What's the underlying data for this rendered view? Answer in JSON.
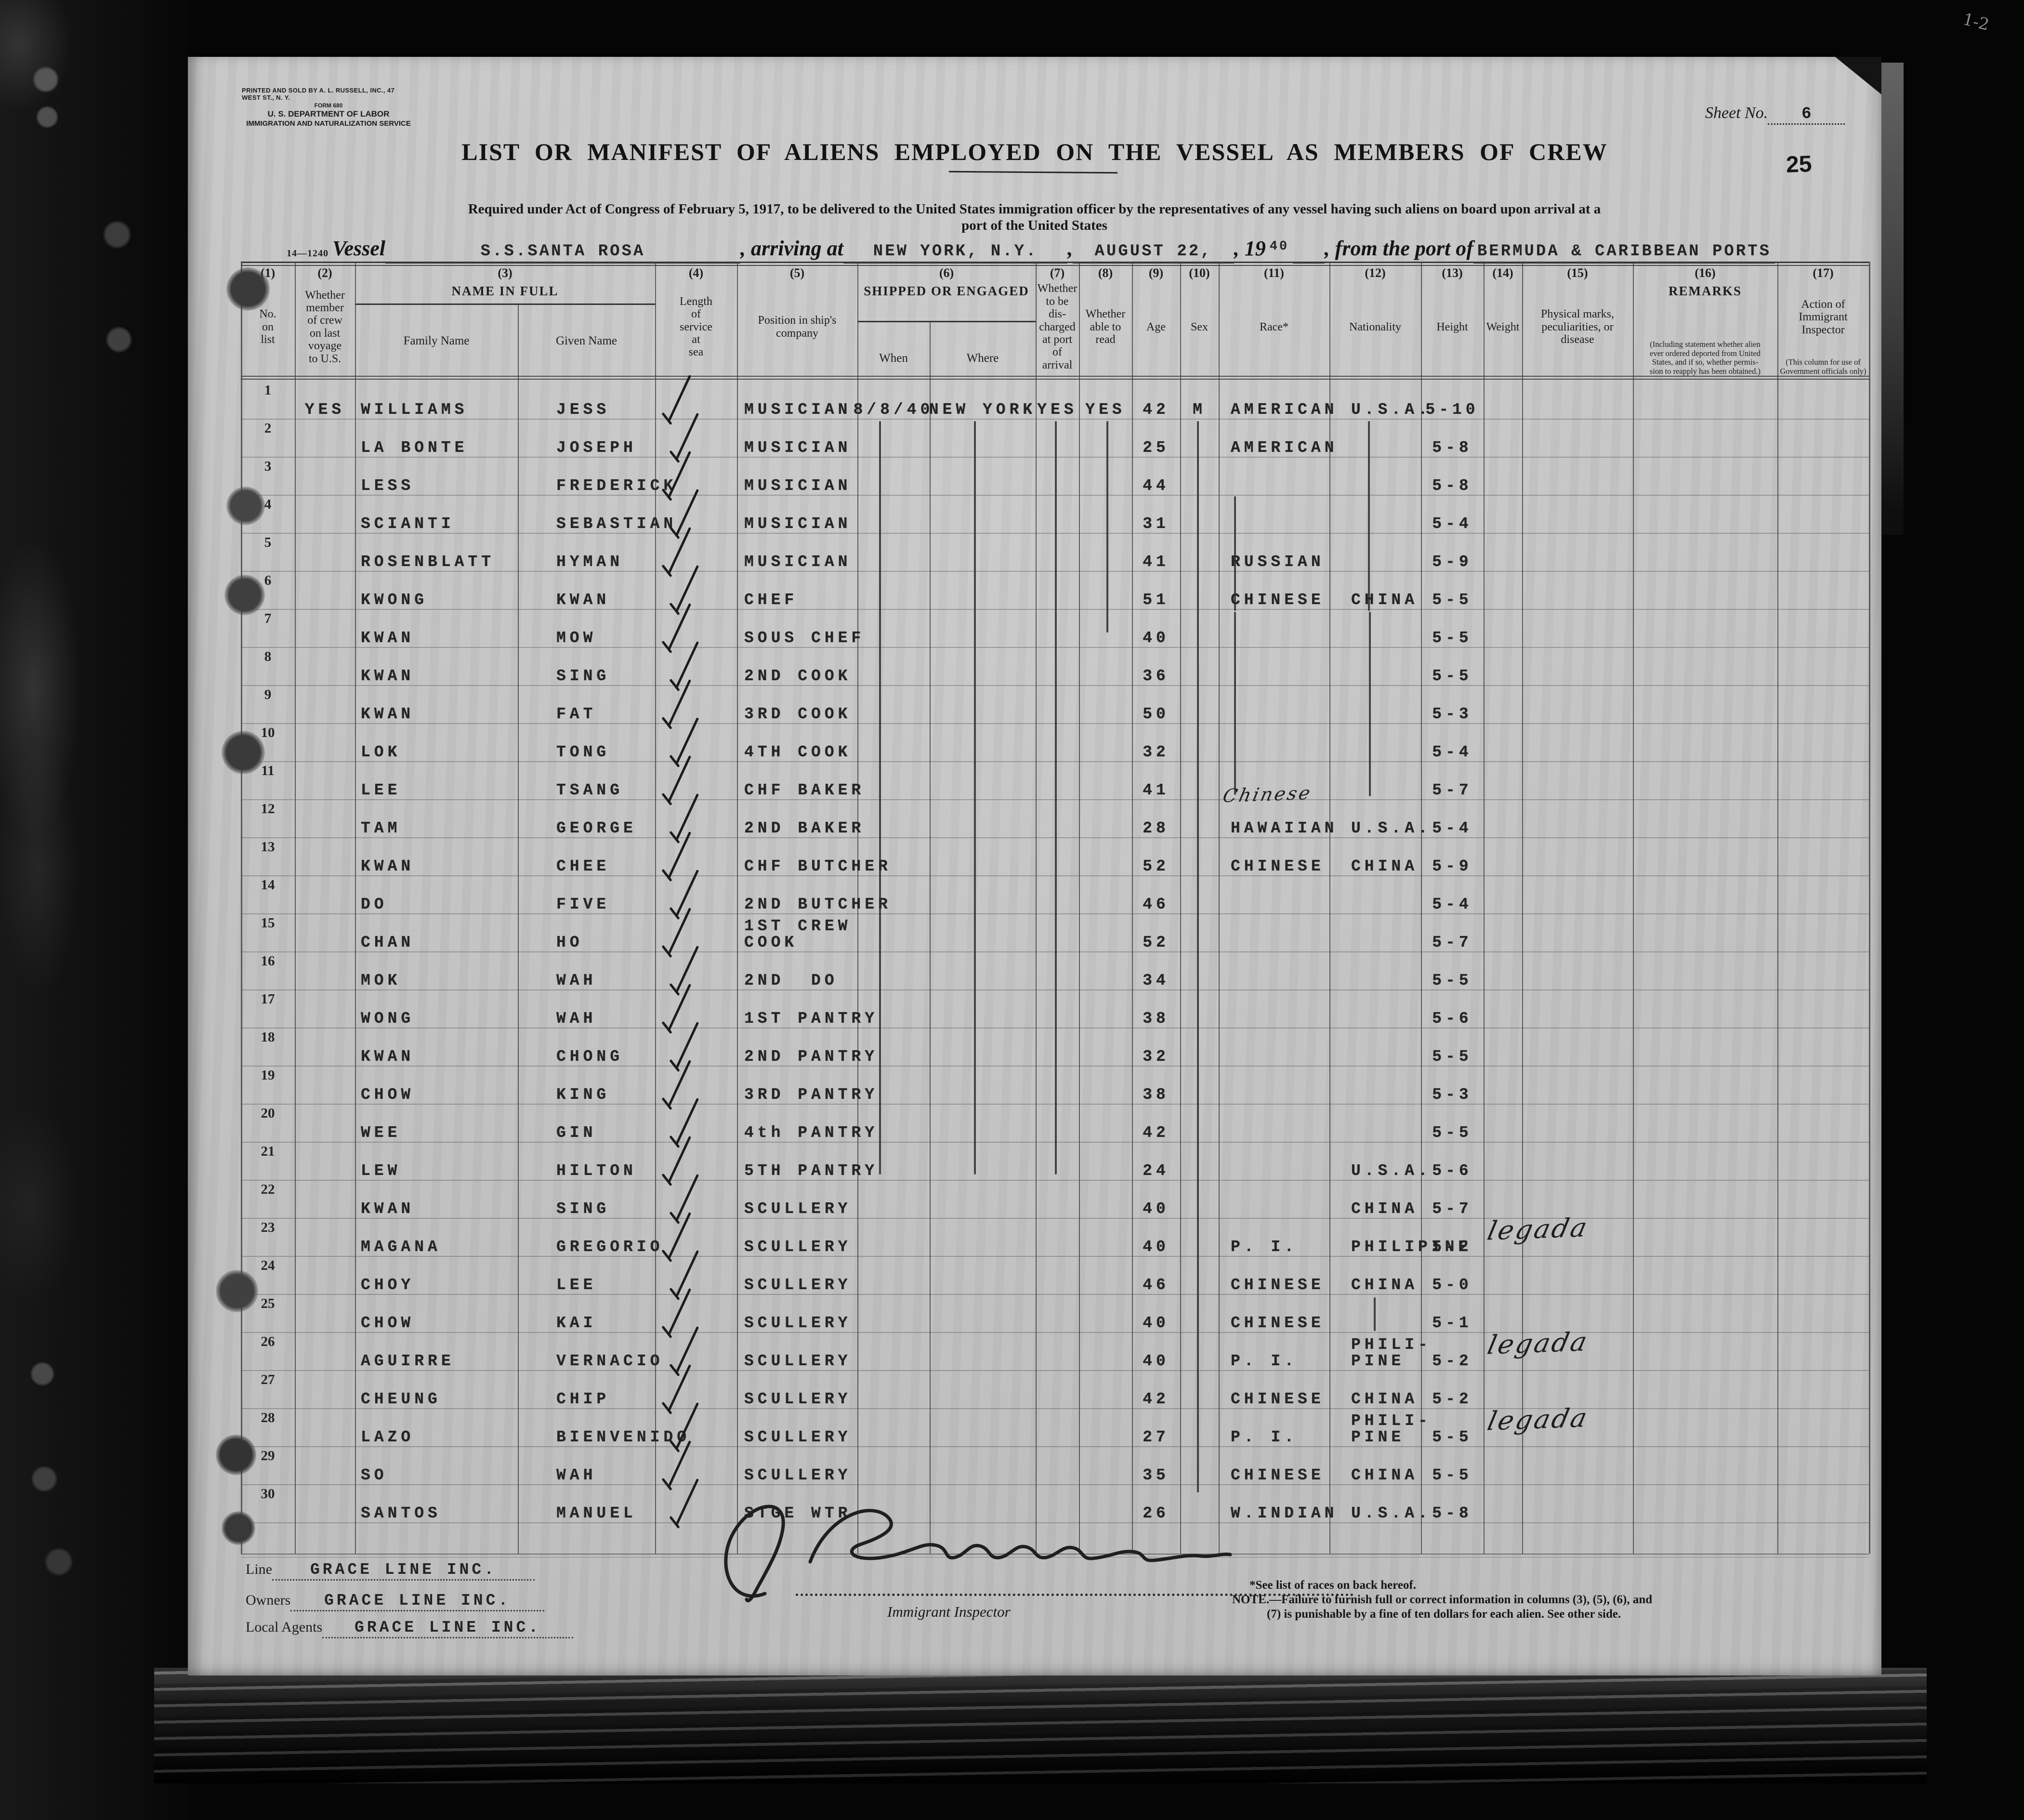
{
  "page": {
    "printer_line": "PRINTED AND SOLD BY A. L. RUSSELL, INC., 47 WEST ST., N. Y.",
    "form_line": "FORM 680",
    "dept_line": "U. S. DEPARTMENT OF LABOR",
    "service_line": "IMMIGRATION AND NATURALIZATION SERVICE",
    "sheet_no_label": "Sheet No.",
    "sheet_no": "6",
    "stamp": "25",
    "corner_mark": "1-2",
    "title": "LIST OR MANIFEST OF ALIENS EMPLOYED ON THE VESSEL AS MEMBERS OF CREW",
    "subtitle": "Required under Act of Congress of February 5, 1917, to be delivered to the United States immigration officer by the representatives of any vessel having such aliens on board upon arrival at a\nport of the United States",
    "form_code": "14—1240"
  },
  "voyage": {
    "vessel_label": "Vessel",
    "vessel": "S.S.SANTA ROSA",
    "arriving_label": ", arriving at",
    "port_of_arrival": "NEW YORK, N.Y.",
    "comma": ",",
    "date": "AUGUST 22,",
    "year_label": ", 19",
    "year_value": "40",
    "from_label": ", from the port of",
    "port_of_departure": "BERMUDA & CARIBBEAN PORTS"
  },
  "table": {
    "columns": [
      {
        "num": "(1)",
        "label": "No.\non\nlist"
      },
      {
        "num": "(2)",
        "label": "Whether\nmember\nof crew\non last\nvoyage\nto U.S."
      },
      {
        "num": "(3)",
        "label": "NAME IN FULL",
        "subs": [
          "Family Name",
          "Given Name"
        ]
      },
      {
        "num": "(4)",
        "label": "Length\nof\nservice\nat\nsea"
      },
      {
        "num": "(5)",
        "label": "Position in ship's\ncompany"
      },
      {
        "num": "(6)",
        "label": "SHIPPED OR ENGAGED",
        "subs": [
          "When",
          "Where"
        ]
      },
      {
        "num": "(7)",
        "label": "Whether\nto be\ndis-\ncharged\nat port of\narrival"
      },
      {
        "num": "(8)",
        "label": "Whether\nable to\nread"
      },
      {
        "num": "(9)",
        "label": "Age"
      },
      {
        "num": "(10)",
        "label": "Sex"
      },
      {
        "num": "(11)",
        "label": "Race*"
      },
      {
        "num": "(12)",
        "label": "Nationality"
      },
      {
        "num": "(13)",
        "label": "Height"
      },
      {
        "num": "(14)",
        "label": "Weight"
      },
      {
        "num": "(15)",
        "label": "Physical marks,\npeculiarities, or\ndisease"
      },
      {
        "num": "(16)",
        "label": "REMARKS",
        "note": "(Including statement whether alien\never ordered deported from United\nStates, and if so, whether permis-\nsion to reapply has been obtained.)"
      },
      {
        "num": "(17)",
        "label": "Action of Immigrant\nInspector",
        "note": "(This column for use of\nGovernment officials only)"
      }
    ],
    "rows": [
      {
        "no": "1",
        "member": "YES",
        "family": "WILLIAMS",
        "given": "JESS",
        "position": "MUSICIAN",
        "when": "8/8/40",
        "where": "NEW YORK",
        "discharged": "YES",
        "read": "YES",
        "age": "42",
        "sex": "M",
        "race": "AMERICAN",
        "nationality": "U.S.A.",
        "height": "5-10"
      },
      {
        "no": "2",
        "family": "LA BONTE",
        "given": "JOSEPH",
        "position": "MUSICIAN",
        "age": "25",
        "race": "AMERICAN",
        "height": "5-8"
      },
      {
        "no": "3",
        "family": "LESS",
        "given": "FREDERICK",
        "position": "MUSICIAN",
        "age": "44",
        "height": "5-8"
      },
      {
        "no": "4",
        "family": "SCIANTI",
        "given": "SEBASTIAN",
        "position": "MUSICIAN",
        "age": "31",
        "height": "5-4"
      },
      {
        "no": "5",
        "family": "ROSENBLATT",
        "given": "HYMAN",
        "position": "MUSICIAN",
        "age": "41",
        "race": "RUSSIAN",
        "height": "5-9"
      },
      {
        "no": "6",
        "family": "KWONG",
        "given": "KWAN",
        "position": "CHEF",
        "age": "51",
        "race": "CHINESE",
        "nationality": "CHINA",
        "height": "5-5"
      },
      {
        "no": "7",
        "family": "KWAN",
        "given": "MOW",
        "position": "SOUS CHEF",
        "age": "40",
        "height": "5-5"
      },
      {
        "no": "8",
        "family": "KWAN",
        "given": "SING",
        "position": "2ND COOK",
        "age": "36",
        "height": "5-5"
      },
      {
        "no": "9",
        "family": "KWAN",
        "given": "FAT",
        "position": "3RD COOK",
        "age": "50",
        "height": "5-3"
      },
      {
        "no": "10",
        "family": "LOK",
        "given": "TONG",
        "position": "4TH COOK",
        "age": "32",
        "height": "5-4"
      },
      {
        "no": "11",
        "family": "LEE",
        "given": "TSANG",
        "position": "CHF BAKER",
        "age": "41",
        "height": "5-7"
      },
      {
        "no": "12",
        "family": "TAM",
        "given": "GEORGE",
        "position": "2ND BAKER",
        "age": "28",
        "race": "HAWAIIAN",
        "race_script": "Chinese",
        "nationality": "U.S.A.",
        "height": "5-4"
      },
      {
        "no": "13",
        "family": "KWAN",
        "given": "CHEE",
        "position": "CHF BUTCHER",
        "age": "52",
        "race": "CHINESE",
        "nationality": "CHINA",
        "height": "5-9"
      },
      {
        "no": "14",
        "family": "DO",
        "given": "FIVE",
        "position": "2ND BUTCHER",
        "age": "46",
        "height": "5-4"
      },
      {
        "no": "15",
        "family": "CHAN",
        "given": "HO",
        "position": "1ST CREW\nCOOK",
        "age": "52",
        "height": "5-7"
      },
      {
        "no": "16",
        "family": "MOK",
        "given": "WAH",
        "position": "2ND  DO",
        "age": "34",
        "height": "5-5"
      },
      {
        "no": "17",
        "family": "WONG",
        "given": "WAH",
        "position": "1ST PANTRY",
        "age": "38",
        "height": "5-6"
      },
      {
        "no": "18",
        "family": "KWAN",
        "given": "CHONG",
        "position": "2ND PANTRY",
        "age": "32",
        "height": "5-5"
      },
      {
        "no": "19",
        "family": "CHOW",
        "given": "KING",
        "position": "3RD PANTRY",
        "age": "38",
        "height": "5-3"
      },
      {
        "no": "20",
        "family": "WEE",
        "given": "GIN",
        "position": "4th PANTRY",
        "age": "42",
        "height": "5-5"
      },
      {
        "no": "21",
        "family": "LEW",
        "given": "HILTON",
        "position": "5TH PANTRY",
        "age": "24",
        "nationality": "U.S.A.",
        "height": "5-6"
      },
      {
        "no": "22",
        "family": "KWAN",
        "given": "SING",
        "position": "SCULLERY",
        "age": "40",
        "nationality": "CHINA",
        "height": "5-7"
      },
      {
        "no": "23",
        "family": "MAGANA",
        "given": "GREGORIO",
        "position": "SCULLERY",
        "age": "40",
        "race": "P. I.",
        "nationality": "PHILIPINE",
        "height": "5-2",
        "remark_script": "legada"
      },
      {
        "no": "24",
        "family": "CHOY",
        "given": "LEE",
        "position": "SCULLERY",
        "age": "46",
        "race": "CHINESE",
        "nationality": "CHINA",
        "height": "5-0"
      },
      {
        "no": "25",
        "family": "CHOW",
        "given": "KAI",
        "position": "SCULLERY",
        "age": "40",
        "race": "CHINESE",
        "height": "5-1"
      },
      {
        "no": "26",
        "family": "AGUIRRE",
        "given": "VERNACIO",
        "position": "SCULLERY",
        "age": "40",
        "race": "P. I.",
        "nationality": "PHILI-\nPINE",
        "height": "5-2",
        "remark_script": "legada"
      },
      {
        "no": "27",
        "family": "CHEUNG",
        "given": "CHIP",
        "position": "SCULLERY",
        "age": "42",
        "race": "CHINESE",
        "nationality": "CHINA",
        "height": "5-2"
      },
      {
        "no": "28",
        "family": "LAZO",
        "given": "BIENVENIDO",
        "position": "SCULLERY",
        "age": "27",
        "race": "P. I.",
        "nationality": "PHILI-\nPINE",
        "height": "5-5",
        "remark_script": "legada"
      },
      {
        "no": "29",
        "family": "SO",
        "given": "WAH",
        "position": "SCULLERY",
        "age": "35",
        "race": "CHINESE",
        "nationality": "CHINA",
        "height": "5-5"
      },
      {
        "no": "30",
        "family": "SANTOS",
        "given": "MANUEL",
        "position": "STGE WTR",
        "age": "26",
        "race": "W.INDIAN",
        "nationality": "U.S.A.",
        "height": "5-8"
      }
    ]
  },
  "footer": {
    "line_label": "Line",
    "line_value": "GRACE LINE INC.",
    "owners_label": "Owners",
    "owners_value": "GRACE LINE INC.",
    "agents_label": "Local Agents",
    "agents_value": "GRACE LINE INC.",
    "inspector_label": "Immigrant Inspector",
    "races_note": "*See list of races on back hereof.",
    "note_line1": "NOTE.—Failure to furnish full or correct information in columns (3), (5), (6), and",
    "note_line2": "(7) is punishable by a fine of ten dollars for each alien.  See other side."
  }
}
